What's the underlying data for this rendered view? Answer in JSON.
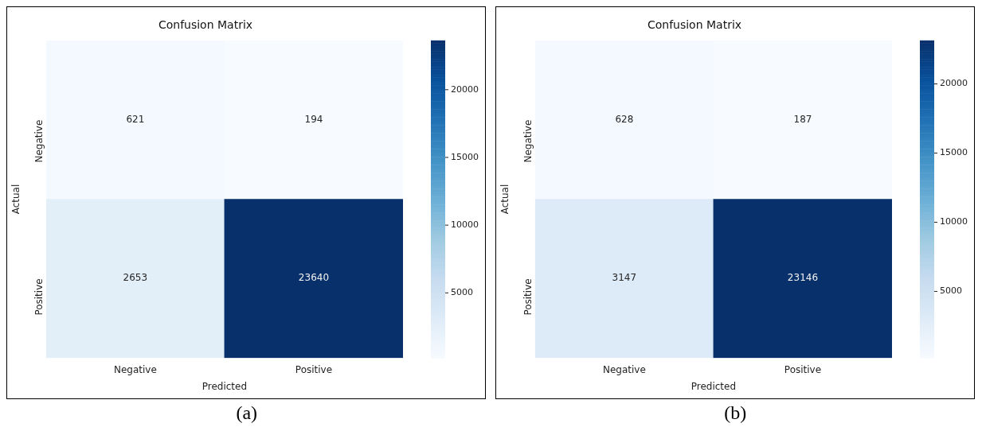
{
  "chart_data": [
    {
      "type": "heatmap",
      "title": "Confusion Matrix",
      "xlabel": "Predicted",
      "ylabel": "Actual",
      "categories": [
        "Negative",
        "Positive"
      ],
      "y_categories": [
        "Negative",
        "Positive"
      ],
      "cells": [
        [
          621,
          194
        ],
        [
          2653,
          23640
        ]
      ],
      "clim": [
        194,
        23640
      ],
      "cticks": [
        5000,
        10000,
        15000,
        20000
      ],
      "data_labels": true,
      "annotations": [
        "(a)"
      ]
    },
    {
      "type": "heatmap",
      "title": "Confusion Matrix",
      "xlabel": "Predicted",
      "ylabel": "Actual",
      "categories": [
        "Negative",
        "Positive"
      ],
      "y_categories": [
        "Negative",
        "Positive"
      ],
      "cells": [
        [
          628,
          187
        ],
        [
          3147,
          23146
        ]
      ],
      "clim": [
        187,
        23146
      ],
      "cticks": [
        5000,
        10000,
        15000,
        20000
      ],
      "data_labels": true,
      "annotations": [
        "(b)"
      ]
    }
  ]
}
